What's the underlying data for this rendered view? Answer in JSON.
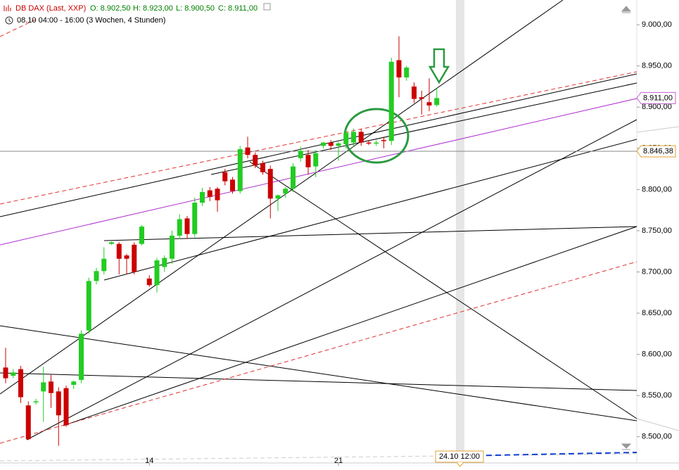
{
  "header": {
    "title": "DB DAX (Last, XXP)",
    "open": "O: 8.902,50",
    "high": "H: 8.923,00",
    "low": "L: 8.900,50",
    "close": "C: 8.911,00",
    "range": "08.10 04:00 - 16:00 (3 Wochen, 4 Stunden)"
  },
  "chart_data": {
    "type": "candlestick",
    "categories": [
      null,
      null,
      null,
      null,
      null,
      null,
      null,
      null,
      null,
      null,
      null,
      null,
      null,
      null,
      null,
      null,
      null,
      null,
      null,
      "14",
      null,
      null,
      null,
      null,
      null,
      null,
      null,
      null,
      null,
      null,
      null,
      null,
      null,
      null,
      null,
      null,
      null,
      null,
      null,
      null,
      null,
      null,
      null,
      null,
      "21",
      null,
      null,
      null,
      null,
      null,
      null,
      null,
      null,
      null,
      null,
      null,
      null,
      null
    ],
    "open": [
      8584,
      8574,
      8582,
      8538,
      8542,
      8555,
      8567,
      8555,
      8559,
      8563,
      8569,
      8629,
      8689,
      8701,
      8734,
      8734,
      8720,
      8733,
      8734,
      8692,
      8684,
      8706,
      8716,
      8744,
      8765,
      8746,
      8784,
      8799,
      8801,
      8821,
      8812,
      8798,
      8851,
      8842,
      8832,
      8825,
      8789,
      8795,
      8801,
      8838,
      8842,
      8828,
      8853,
      8857,
      8853,
      8855,
      8857,
      8870,
      8857,
      8856,
      8860,
      8859,
      8957,
      8936,
      8925,
      8912,
      8906,
      8902.5
    ],
    "high": [
      8608,
      8582,
      8586,
      8543,
      8546,
      8585,
      8575,
      8560,
      8562,
      8568,
      8629,
      8693,
      8705,
      8730,
      8737,
      8736,
      8722,
      8736,
      8757,
      8696,
      8717,
      8720,
      8750,
      8770,
      8768,
      8790,
      8802,
      8803,
      8803,
      8825,
      8815,
      8853,
      8864,
      8845,
      8835,
      8829,
      8794,
      8803,
      8832,
      8852,
      8848,
      8848,
      8858,
      8860,
      8858,
      8872,
      8874,
      8873,
      8860,
      8860,
      8864,
      8960,
      8986,
      8950,
      8930,
      8920,
      8935,
      8923
    ],
    "low": [
      8565,
      8571,
      8541,
      8496,
      8539,
      8518,
      8535,
      8489,
      8512,
      8558,
      8565,
      8625,
      8685,
      8697,
      8733,
      8697,
      8697,
      8697,
      8732,
      8682,
      8675,
      8700,
      8710,
      8740,
      8740,
      8742,
      8780,
      8786,
      8773,
      8805,
      8795,
      8795,
      8838,
      8826,
      8818,
      8765,
      8774,
      8790,
      8797,
      8834,
      8818,
      8815,
      8850,
      8848,
      8835,
      8850,
      8852,
      8853,
      8854,
      8853,
      8850,
      8854,
      8912,
      8932,
      8905,
      8891,
      8895,
      8900.5
    ],
    "close": [
      8571,
      8578,
      8548,
      8497,
      8543,
      8566,
      8553,
      8526,
      8514,
      8567,
      8625,
      8689,
      8701,
      8716,
      8736,
      8716,
      8716,
      8700,
      8755,
      8684,
      8714,
      8717,
      8744,
      8764,
      8746,
      8784,
      8797,
      8791,
      8787,
      8810,
      8798,
      8849,
      8842,
      8829,
      8821,
      8789,
      8793,
      8801,
      8828,
      8847,
      8827,
      8844,
      8857,
      8853,
      8856,
      8869,
      8870,
      8857,
      8856,
      8857,
      8859,
      8955,
      8936,
      8948,
      8910,
      8910,
      8902,
      8911
    ],
    "up_color": "#22cc22",
    "down_color": "#cc0000",
    "ylim": [
      8475,
      9030
    ],
    "yticks": [
      {
        "value": 8500,
        "label": "8.500,00"
      },
      {
        "value": 8550,
        "label": "8.550,00"
      },
      {
        "value": 8600,
        "label": "8.600,00"
      },
      {
        "value": 8650,
        "label": "8.650,00"
      },
      {
        "value": 8700,
        "label": "8.700,00"
      },
      {
        "value": 8750,
        "label": "8.750,00"
      },
      {
        "value": 8800,
        "label": "8.800,00"
      },
      {
        "value": 8850,
        "label": "8.850,00"
      },
      {
        "value": 8900,
        "label": "8.900,00"
      },
      {
        "value": 8950,
        "label": "8.950,00"
      },
      {
        "value": 9000,
        "label": "9.000,00"
      }
    ],
    "last_price": {
      "value": 8911,
      "label": "8.911,00"
    },
    "crosshair_price": {
      "value": 8846.38,
      "label": "8.846,38"
    },
    "crosshair_time": "24.10 12:00"
  }
}
